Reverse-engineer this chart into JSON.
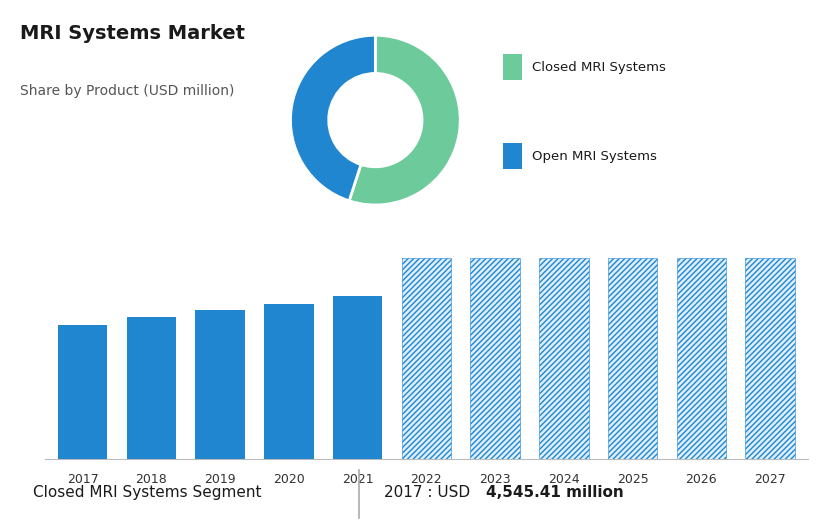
{
  "title": "MRI Systems Market",
  "subtitle": "Share by Product (USD million)",
  "donut_labels": [
    "Closed MRI Systems",
    "Open MRI Systems"
  ],
  "donut_values": [
    55,
    45
  ],
  "donut_colors": [
    "#6dca9b",
    "#2186d0"
  ],
  "bar_years_solid": [
    2017,
    2018,
    2019,
    2020,
    2021
  ],
  "bar_values_solid": [
    4545,
    4800,
    5050,
    5250,
    5520
  ],
  "bar_years_hatched": [
    2022,
    2023,
    2024,
    2025,
    2026,
    2027
  ],
  "bar_values_hatched": [
    6800,
    6800,
    6800,
    6800,
    6800,
    6800
  ],
  "bar_color_solid": "#2186d0",
  "bar_color_hatched_face": "#ddeeff",
  "bar_color_hatched_edge": "#2186d0",
  "top_bg_color": "#cdd6e0",
  "bottom_bg_color": "#ffffff",
  "footer_label": "Closed MRI Systems Segment",
  "footer_value": "2017 : USD ",
  "footer_bold_value": "4,545.41 million",
  "ylim_max": 7500,
  "grid_color": "#dddddd",
  "legend_colors": [
    "#6dca9b",
    "#2186d0"
  ]
}
